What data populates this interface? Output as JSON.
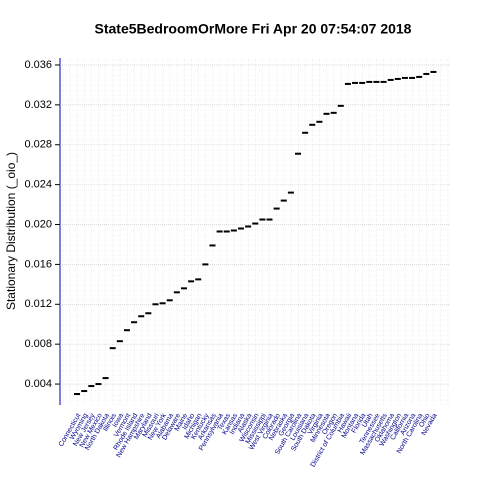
{
  "chart_data": {
    "type": "marker",
    "title": "State5BedroomOrMore  Fri Apr 20 07:54:07 2018",
    "y_label": "Stationary Distribution (_oio_)",
    "categories": [
      "Connecticut",
      "Wyoming",
      "New Jersey",
      "New Mexico",
      "North Dakota",
      "Illinois",
      "Iowa",
      "Vermont",
      "Rhode Island",
      "New Hampshire",
      "Maryland",
      "Missouri",
      "New York",
      "Alabama",
      "Delaware",
      "Maine",
      "Idaho",
      "Michigan",
      "Kentucky",
      "Arkansas",
      "Pennsylvania",
      "Texas",
      "Kansas",
      "Indiana",
      "Alaska",
      "Wisconsin",
      "Mississippi",
      "West Virginia",
      "Colorado",
      "Nebraska",
      "Georgia",
      "South Carolina",
      "Louisiana",
      "South Dakota",
      "Virginia",
      "Minnesota",
      "Oregon",
      "District of Columbia",
      "Hawaii",
      "Montana",
      "Florida",
      "Utah",
      "Tennessee",
      "Massachusetts",
      "Oklahoma",
      "Washington",
      "California",
      "Arizona",
      "North Carolina",
      "Ohio",
      "Nevada"
    ],
    "values": [
      0.003,
      0.0033,
      0.0038,
      0.004,
      0.0046,
      0.0076,
      0.0083,
      0.0094,
      0.0102,
      0.0108,
      0.0111,
      0.012,
      0.0121,
      0.0124,
      0.0132,
      0.0136,
      0.0143,
      0.0145,
      0.016,
      0.0179,
      0.0193,
      0.0193,
      0.0194,
      0.0196,
      0.0198,
      0.0201,
      0.0205,
      0.0205,
      0.0216,
      0.0224,
      0.0232,
      0.0271,
      0.0292,
      0.03,
      0.0303,
      0.0311,
      0.0312,
      0.0319,
      0.0341,
      0.0342,
      0.0342,
      0.0343,
      0.0343,
      0.0343,
      0.0345,
      0.0346,
      0.0347,
      0.0347,
      0.0348,
      0.0351,
      0.0353
    ],
    "color": "#000000",
    "label_color": "#00008b",
    "ylim": [
      0.0019,
      0.0369
    ],
    "yticks": [
      0.004,
      0.008,
      0.012,
      0.016,
      {
        "value": 0.02,
        "label": "0.020"
      },
      0.024,
      0.028,
      0.032,
      0.036
    ],
    "grid": true
  }
}
